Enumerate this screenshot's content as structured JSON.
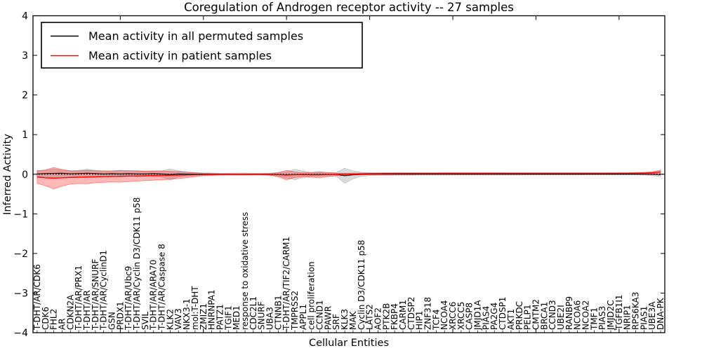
{
  "chart_data": {
    "type": "line",
    "title": "Coregulation of Androgen receptor activity -- 27 samples",
    "xlabel": "Cellular Entities",
    "ylabel": "Inferred Activity",
    "ylim": [
      -4,
      4
    ],
    "yticks": [
      -4,
      -3,
      -2,
      -1,
      0,
      1,
      2,
      3,
      4
    ],
    "ytick_labels": [
      "−4",
      "−3",
      "−2",
      "−1",
      "0",
      "1",
      "2",
      "3",
      "4"
    ],
    "x_major_tick_every": 10,
    "grid": false,
    "legend_position": "upper left",
    "zero_reference_line": {
      "y": 0,
      "style": "dotted",
      "color": "#000000"
    },
    "legend": [
      {
        "label": "Mean activity in all permuted samples",
        "color": "#000000"
      },
      {
        "label": "Mean activity in patient samples",
        "color": "#ff0000"
      }
    ],
    "categories": [
      "T-DHT/AR/CDK6",
      "CDK6",
      "FHL2",
      "AR",
      "CDKN2A",
      "T-DHT/AR/PRX1",
      "T-DHT/AR",
      "T-DHT/AR/SNURF",
      "T-DHT/AR/CyclinD1",
      "GSN",
      "PRDX1",
      "T-DHT/AR/Ubc9",
      "T-DHT/AR/Cyclin D3/CDK11 p58",
      "SVIL",
      "T-DHT/AR/ARA70",
      "T-DHT/AR/Caspase 8",
      "KLK2",
      "VAV3",
      "NKX3-1",
      "mol:T-DHT",
      "ZMIZ1",
      "HNRNPA1",
      "PATZ1",
      "TGIF1",
      "MED1",
      "response to oxidative stress",
      "CDC2L1",
      "SNURF",
      "UBA3",
      "CTNNB1",
      "T-DHT/AR/TIF2/CARM1",
      "TMPRSS2",
      "APPL1",
      "cell proliferation",
      "CCND1",
      "PAWR",
      "SRF",
      "KLK3",
      "MAK",
      "Cyclin D3/CDK11 p58",
      "LATS2",
      "AOF2",
      "PTK2B",
      "FKBP4",
      "CARM1",
      "CTDSP2",
      "HIP1",
      "ZNF318",
      "TCF4",
      "NCOA4",
      "XRCC6",
      "XRCC5",
      "CASP8",
      "JMJD1A",
      "PIAS4",
      "PA2G4",
      "CTDSP1",
      "AKT1",
      "PRKDC",
      "PELP1",
      "CMTM2",
      "BRCA1",
      "CCND3",
      "UBE2I",
      "RANBP9",
      "NCOA6",
      "NCOA2",
      "TMF1",
      "PIAS3",
      "JMJD2C",
      "TGFB1I1",
      "NRIP1",
      "RPS6KA3",
      "PIAS1",
      "UBE3A",
      "DNA-PK"
    ],
    "series": [
      {
        "name": "Mean activity in all permuted samples",
        "color": "#000000",
        "line_width": 1,
        "band_color": "#999999",
        "band_opacity": 0.35,
        "values": [
          0.01,
          0.018,
          0.022,
          0.028,
          0.012,
          0.018,
          0.028,
          0.018,
          0.01,
          0.015,
          0.01,
          0.015,
          0.008,
          0.01,
          0.015,
          0.008,
          -0.008,
          0.008,
          0.005,
          0.003,
          0.002,
          0.002,
          0.001,
          0.001,
          0.001,
          0.001,
          0.001,
          0.001,
          0.0,
          -0.005,
          -0.015,
          -0.008,
          -0.002,
          -0.008,
          -0.005,
          -0.002,
          -0.002,
          -0.04,
          -0.015,
          -0.002,
          0.0,
          0.0,
          0.0,
          0.0,
          0.0,
          0.0,
          0.0,
          0.0,
          0.0,
          0.0,
          0.0,
          0.0,
          0.0,
          0.0,
          0.0,
          0.0,
          0.0,
          0.0,
          0.0,
          0.0,
          0.0,
          0.0,
          0.0,
          0.0,
          0.0,
          0.0,
          0.0,
          0.0,
          0.0,
          0.0,
          0.0,
          0.0,
          0.0,
          0.0,
          -0.005,
          -0.012
        ],
        "band_halfwidth": [
          0.07,
          0.08,
          0.11,
          0.08,
          0.07,
          0.08,
          0.1,
          0.08,
          0.07,
          0.06,
          0.08,
          0.06,
          0.07,
          0.06,
          0.07,
          0.08,
          0.14,
          0.08,
          0.05,
          0.04,
          0.03,
          0.03,
          0.025,
          0.025,
          0.03,
          0.03,
          0.025,
          0.025,
          0.03,
          0.05,
          0.08,
          0.13,
          0.08,
          0.05,
          0.05,
          0.04,
          0.05,
          0.19,
          0.1,
          0.05,
          0.035,
          0.03,
          0.03,
          0.028,
          0.026,
          0.025,
          0.024,
          0.023,
          0.022,
          0.022,
          0.021,
          0.02,
          0.02,
          0.02,
          0.019,
          0.019,
          0.018,
          0.018,
          0.018,
          0.017,
          0.017,
          0.017,
          0.016,
          0.016,
          0.016,
          0.016,
          0.015,
          0.015,
          0.015,
          0.015,
          0.015,
          0.015,
          0.016,
          0.02,
          0.03,
          0.045
        ]
      },
      {
        "name": "Mean activity in patient samples",
        "color": "#ff0000",
        "line_width": 1.4,
        "band_color": "#ff0000",
        "band_opacity": 0.28,
        "values": [
          -0.07,
          -0.09,
          -0.1,
          -0.09,
          -0.08,
          -0.075,
          -0.07,
          -0.065,
          -0.06,
          -0.055,
          -0.05,
          -0.047,
          -0.043,
          -0.04,
          -0.035,
          -0.03,
          -0.026,
          -0.022,
          -0.017,
          -0.012,
          -0.008,
          -0.005,
          -0.004,
          -0.003,
          -0.003,
          -0.002,
          -0.002,
          -0.002,
          -0.005,
          -0.012,
          -0.02,
          -0.012,
          -0.01,
          -0.015,
          -0.015,
          -0.008,
          -0.003,
          -0.005,
          0.003,
          0.008,
          0.012,
          0.015,
          0.017,
          0.018,
          0.019,
          0.02,
          0.02,
          0.021,
          0.021,
          0.022,
          0.022,
          0.022,
          0.022,
          0.022,
          0.022,
          0.023,
          0.023,
          0.023,
          0.023,
          0.023,
          0.023,
          0.023,
          0.023,
          0.023,
          0.024,
          0.024,
          0.024,
          0.024,
          0.024,
          0.024,
          0.025,
          0.025,
          0.027,
          0.03,
          0.038,
          0.06
        ],
        "band_halfwidth": [
          0.16,
          0.2,
          0.27,
          0.21,
          0.17,
          0.16,
          0.17,
          0.15,
          0.145,
          0.14,
          0.15,
          0.14,
          0.13,
          0.12,
          0.115,
          0.11,
          0.1,
          0.09,
          0.07,
          0.05,
          0.03,
          0.022,
          0.018,
          0.016,
          0.015,
          0.015,
          0.014,
          0.014,
          0.02,
          0.05,
          0.12,
          0.07,
          0.05,
          0.06,
          0.08,
          0.05,
          0.03,
          0.03,
          0.025,
          0.022,
          0.02,
          0.02,
          0.019,
          0.019,
          0.018,
          0.018,
          0.018,
          0.017,
          0.017,
          0.016,
          0.016,
          0.016,
          0.015,
          0.015,
          0.015,
          0.015,
          0.014,
          0.014,
          0.014,
          0.014,
          0.013,
          0.013,
          0.013,
          0.013,
          0.013,
          0.012,
          0.012,
          0.012,
          0.012,
          0.012,
          0.012,
          0.013,
          0.014,
          0.018,
          0.025,
          0.045
        ]
      }
    ]
  }
}
